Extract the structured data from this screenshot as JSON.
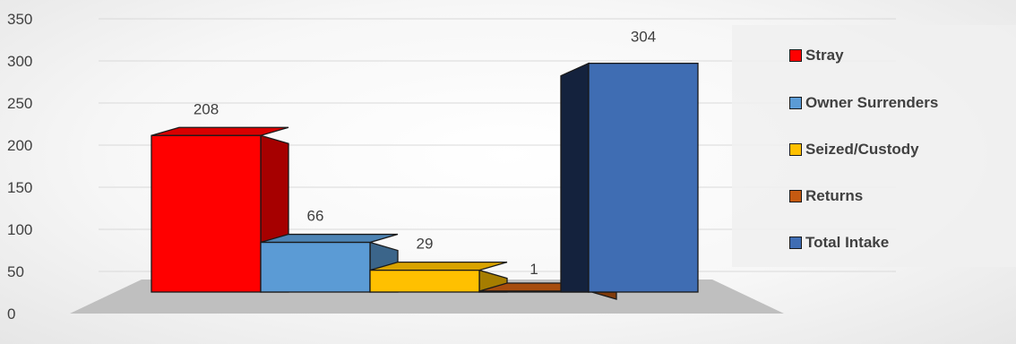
{
  "chart_data": {
    "type": "bar",
    "title": "",
    "xlabel": "",
    "ylabel": "",
    "ylim": [
      0,
      350
    ],
    "yticks": [
      0,
      50,
      100,
      150,
      200,
      250,
      300,
      350
    ],
    "grid": true,
    "legend_position": "right",
    "three_d": true,
    "series": [
      {
        "name": "Stray",
        "value": 208,
        "color": "#ff0000"
      },
      {
        "name": "Owner Surrenders",
        "value": 66,
        "color": "#5b9bd5"
      },
      {
        "name": "Seized/Custody",
        "value": 29,
        "color": "#ffc000"
      },
      {
        "name": "Returns",
        "value": 1,
        "color": "#c55a11"
      },
      {
        "name": "Total Intake",
        "value": 304,
        "color": "#3f6db3"
      }
    ]
  }
}
